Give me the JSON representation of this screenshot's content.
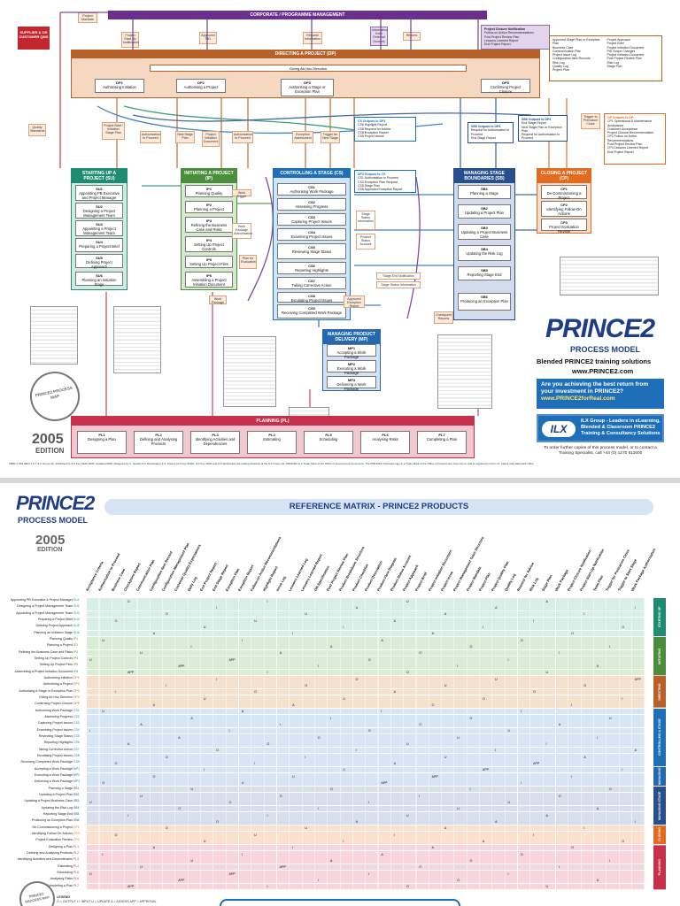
{
  "poster": {
    "corporate_bar": "CORPORATE / PROGRAMME MANAGEMENT",
    "supplier_box": "SUPPLIER & OR CUSTOMER QMS",
    "directing": {
      "title": "DIRECTING A PROJECT (DP)",
      "adhoc": "Giving Ad Hoc Direction",
      "subs": [
        {
          "code": "DP1",
          "label": "Authorising Initiation"
        },
        {
          "code": "DP2",
          "label": "Authorising a Project"
        },
        {
          "code": "DP3",
          "label": "Authorising a Stage or Exception Plan"
        },
        {
          "code": "DP5",
          "label": "Confirming Project Closure"
        }
      ]
    },
    "top_notes": [
      "Project Mandate",
      "Project Start-Up Notification",
      "Approved PID",
      "Request Information",
      "Information from External Sources",
      "Reports"
    ],
    "closure_notifications": {
      "title": "Project Closure Notification",
      "items": [
        "Follow-on Action Recommendations",
        "Post Project Review Plan",
        "Lessons Learned Report",
        "End Project Report"
      ]
    },
    "side_notes": [
      "Quality Standards",
      "Project Brief / Initiation Stage Plan",
      "Authorisation to Proceed",
      "Next Stage Plan",
      "Project Initiation Document",
      "Authorisation to Proceed",
      "Exception Assessment",
      "Trigger for New Stage",
      "Trigger to Premature Close"
    ],
    "ci_inputs": {
      "title": "CS Outputs to DP3",
      "items": [
        "CS6 Highlight Report",
        "CS8 Request for Advice",
        "CS8 Exception Report",
        "CS8 Project Issues"
      ]
    },
    "sb_dp_outputs": {
      "title": "SB5 Outputs to DP3",
      "items": [
        "Request for Authorisation to Proceed",
        "End Stage Report"
      ]
    },
    "sb_dp4": {
      "title": "SB6 Outputs to DP3",
      "items": [
        "End Stage Report",
        "Next Stage Plan or Exception Plan",
        "Request for Authorisation to Proceed"
      ]
    },
    "cp_outputs": {
      "title": "CP Outputs to DP",
      "items": [
        "CP1 Operational & Maintenance Acceptance",
        "Customer Acceptance",
        "Project Closure Recommendation",
        "CP2 Follow on Action Recommendations",
        "Post Project Review Plan",
        "CP3 Lessons Learned Report",
        "End Project Report"
      ]
    },
    "mgmt_info_top": {
      "items": [
        "Approved Stage Plan or Exception Plan",
        "Business Case",
        "Communication Plan",
        "Project Issue Log",
        "Configuration Item Records",
        "Risk Log",
        "Quality Log",
        "Project Plan",
        "Project Approach",
        "Project Brief",
        "Project Initiation Document",
        "PID Scope Changes",
        "Project Initiation Document",
        "Post Project Review Plan",
        "Risk Log",
        "Stage Plan"
      ]
    },
    "stacks": [
      {
        "title": "STARTING UP A PROJECT (SU)",
        "subs": [
          {
            "code": "SU1",
            "label": "Appointing PB Executive and Project Manager"
          },
          {
            "code": "SU2",
            "label": "Designing a Project Management Team"
          },
          {
            "code": "SU3",
            "label": "Appointing a Project Management Team"
          },
          {
            "code": "SU4",
            "label": "Preparing a Project Brief"
          },
          {
            "code": "SU5",
            "label": "Defining Project Approach"
          },
          {
            "code": "SU6",
            "label": "Planning an Initiation Stage"
          }
        ]
      },
      {
        "title": "INITIATING A PROJECT (IP)",
        "subs": [
          {
            "code": "IP1",
            "label": "Planning Quality"
          },
          {
            "code": "IP2",
            "label": "Planning a Project"
          },
          {
            "code": "IP3",
            "label": "Refining the Business Case and Risks"
          },
          {
            "code": "IP4",
            "label": "Setting Up Project Controls"
          },
          {
            "code": "IP5",
            "label": "Setting Up Project Files"
          },
          {
            "code": "IP6",
            "label": "Assembling a Project Initiation Document"
          }
        ]
      },
      {
        "title": "CONTROLLING A STAGE (CS)",
        "subs": [
          {
            "code": "CS1",
            "label": "Authorising Work Package"
          },
          {
            "code": "CS2",
            "label": "Assessing Progress"
          },
          {
            "code": "CS3",
            "label": "Capturing Project Issues"
          },
          {
            "code": "CS4",
            "label": "Examining Project Issues"
          },
          {
            "code": "CS5",
            "label": "Reviewing Stage Status"
          },
          {
            "code": "CS6",
            "label": "Reporting Highlights"
          },
          {
            "code": "CS7",
            "label": "Taking Corrective Action"
          },
          {
            "code": "CS8",
            "label": "Escalating Project Issues"
          },
          {
            "code": "CS9",
            "label": "Receiving Completed Work Package"
          }
        ]
      },
      {
        "title": "MANAGING STAGE BOUNDARIES (SB)",
        "subs": [
          {
            "code": "SB1",
            "label": "Planning a Stage"
          },
          {
            "code": "SB2",
            "label": "Updating a Project Plan"
          },
          {
            "code": "SB3",
            "label": "Updating a Project Business Case"
          },
          {
            "code": "SB4",
            "label": "Updating the Risk Log"
          },
          {
            "code": "SB5",
            "label": "Reporting Stage End"
          },
          {
            "code": "SB6",
            "label": "Producing an Exception Plan"
          }
        ]
      },
      {
        "title": "CLOSING A PROJECT (CP)",
        "subs": [
          {
            "code": "CP1",
            "label": "De-Commissioning a Project"
          },
          {
            "code": "CP2",
            "label": "Identifying Follow-On Actions"
          },
          {
            "code": "CP3",
            "label": "Project Evaluation Review"
          }
        ]
      },
      {
        "title": "MANAGING PRODUCT DELIVERY (MP)",
        "subs": [
          {
            "code": "MP1",
            "label": "Accepting a Work Package"
          },
          {
            "code": "MP2",
            "label": "Executing a Work Package"
          },
          {
            "code": "MP3",
            "label": "Delivering a Work Package"
          }
        ]
      }
    ],
    "cs_outputs": {
      "title": "DP3 Outputs to CS",
      "items": [
        "CS1 Authorisation to Proceed",
        "CS2 Exception Plan Request",
        "CS5 Stage Plan",
        "CS8 Approved Exception Report"
      ]
    },
    "cs_side": [
      "Work Trigger",
      "Stage Status Information",
      "Product Status Account",
      "Stage End Notification",
      "Work Package Authorisation",
      "Stage Status Information",
      "Plan for Evaluation",
      "Work Package",
      "Approved Exception Report",
      "Checkpoint Reports"
    ],
    "planning": {
      "title": "PLANNING (PL)",
      "subs": [
        {
          "code": "PL1",
          "label": "Designing a Plan"
        },
        {
          "code": "PL2",
          "label": "Defining and Analysing Products"
        },
        {
          "code": "PL3",
          "label": "Identifying Activities and Dependencies"
        },
        {
          "code": "PL4",
          "label": "Estimating"
        },
        {
          "code": "PL5",
          "label": "Scheduling"
        },
        {
          "code": "PL6",
          "label": "Analysing Risks"
        },
        {
          "code": "PL7",
          "label": "Completing a Plan"
        }
      ]
    },
    "prince2_logo": "PRINCE2",
    "process_model": "PROCESS MODEL",
    "blended": "Blended PRINCE2 training solutions",
    "url": "www.PRINCE2.com",
    "question": "Are you achieving the best return from your investment in PRINCE2?",
    "question_url": "www.PRINCE2forReal.com",
    "ilx_text": "ILX Group - Leaders in eLearning, Blended & Classroom PRINCE2 Training & Consultancy Solutions",
    "ilx": "ILX",
    "order_text": "To order further copies of this process model, or to contact a Training Specialist, call +44 (0) 1270 611600",
    "edition_year": "2005",
    "edition": "EDITION",
    "stamp": "PRINCE2 PROCESS MAP",
    "footer": "ISBN: 0 954 9904 1 6   © ILX Group plc. Published by ILX Key Skills 2005. Updated 2005. Designed by C. Gaudin ILX Workscape) & S. Davies (ILX Key Skills). ILX Key Skills and ILX Workscape are trading divisions of the ILX Group plc.   PRINCE2 is a Trade Mark of the Office of Government Commerce. The PRINCE2 Cityscape logo is a Trade Mark of the Office of Government Commerce, and is registered in the U.S. patent and trademark office.",
    "colors": {
      "corporate": "#6a2f8a",
      "directing": "#b6602a",
      "su": "#1f8c72",
      "ip": "#4a8d3b",
      "cs": "#1f6fb8",
      "sb": "#274f8e",
      "cp": "#e36a1f",
      "mp": "#2468b0",
      "planning": "#c7304a",
      "supplier": "#c1272d"
    }
  },
  "matrix": {
    "logo": "PRINCE2",
    "process_model": "PROCESS MODEL",
    "year": "2005",
    "edition": "EDITION",
    "title": "REFERENCE MATRIX - PRINCE2 PRODUCTS",
    "legend_title": "LEGEND",
    "legend": "O = OUTPUT   I = INPUT   U = UPDATE   A = ASSESS   APP = APPROVAL",
    "stamp": "PRINCE2 PROCESS MAP",
    "rows": [
      {
        "label": "Appointing PB Executive & Project Manager",
        "code": "SU1",
        "band": "su"
      },
      {
        "label": "Designing a Project Management Team",
        "code": "SU2",
        "band": "su"
      },
      {
        "label": "Appointing a Project Management Team",
        "code": "SU3",
        "band": "su"
      },
      {
        "label": "Preparing a Project Brief",
        "code": "SU4",
        "band": "su"
      },
      {
        "label": "Defining Project Approach",
        "code": "SU5",
        "band": "su"
      },
      {
        "label": "Planning an Initiation Stage",
        "code": "SU6",
        "band": "su"
      },
      {
        "label": "Planning Quality",
        "code": "IP1",
        "band": "ip"
      },
      {
        "label": "Planning a Project",
        "code": "IP2",
        "band": "ip"
      },
      {
        "label": "Refining the Business Case and Risks",
        "code": "IP3",
        "band": "ip"
      },
      {
        "label": "Setting Up Project Controls",
        "code": "IP4",
        "band": "ip"
      },
      {
        "label": "Setting Up Project Files",
        "code": "IP5",
        "band": "ip"
      },
      {
        "label": "Assembling a Project Initiation Document",
        "code": "IP6",
        "band": "ip"
      },
      {
        "label": "Authorising Initiation",
        "code": "DP1",
        "band": "dp"
      },
      {
        "label": "Authorising a Project",
        "code": "DP2",
        "band": "dp"
      },
      {
        "label": "Authorising a Stage or Exception Plan",
        "code": "DP3",
        "band": "dp"
      },
      {
        "label": "Giving Ad Hoc Direction",
        "code": "DP4",
        "band": "dp"
      },
      {
        "label": "Confirming Project Closure",
        "code": "DP5",
        "band": "dp"
      },
      {
        "label": "Authorising Work Package",
        "code": "CS1",
        "band": "cs"
      },
      {
        "label": "Assessing Progress",
        "code": "CS2",
        "band": "cs"
      },
      {
        "label": "Capturing Project Issues",
        "code": "CS3",
        "band": "cs"
      },
      {
        "label": "Examining Project Issues",
        "code": "CS4",
        "band": "cs"
      },
      {
        "label": "Reviewing Stage Status",
        "code": "CS5",
        "band": "cs"
      },
      {
        "label": "Reporting Highlights",
        "code": "CS6",
        "band": "cs"
      },
      {
        "label": "Taking Corrective Action",
        "code": "CS7",
        "band": "cs"
      },
      {
        "label": "Escalating Project Issues",
        "code": "CS8",
        "band": "cs"
      },
      {
        "label": "Receiving Completed Work Package",
        "code": "CS9",
        "band": "cs"
      },
      {
        "label": "Accepting a Work Package",
        "code": "MP1",
        "band": "mp"
      },
      {
        "label": "Executing a Work Package",
        "code": "MP2",
        "band": "mp"
      },
      {
        "label": "Delivering a Work Package",
        "code": "MP3",
        "band": "mp"
      },
      {
        "label": "Planning a Stage",
        "code": "SB1",
        "band": "sb"
      },
      {
        "label": "Updating a Project Plan",
        "code": "SB2",
        "band": "sb"
      },
      {
        "label": "Updating a Project Business Case",
        "code": "SB3",
        "band": "sb"
      },
      {
        "label": "Updating the Risk Log",
        "code": "SB4",
        "band": "sb"
      },
      {
        "label": "Reporting Stage End",
        "code": "SB5",
        "band": "sb"
      },
      {
        "label": "Producing an Exception Plan",
        "code": "SB6",
        "band": "sb"
      },
      {
        "label": "De-Commissioning a Project",
        "code": "CP1",
        "band": "cp"
      },
      {
        "label": "Identifying Follow-On Actions",
        "code": "CP2",
        "band": "cp"
      },
      {
        "label": "Project Evaluation Review",
        "code": "CP3",
        "band": "cp"
      },
      {
        "label": "Designing a Plan",
        "code": "PL1",
        "band": "pl"
      },
      {
        "label": "Defining and Analysing Products",
        "code": "PL2",
        "band": "pl"
      },
      {
        "label": "Identifying Activities and Dependencies",
        "code": "PL3",
        "band": "pl"
      },
      {
        "label": "Estimating",
        "code": "PL4",
        "band": "pl"
      },
      {
        "label": "Scheduling",
        "code": "PL5",
        "band": "pl"
      },
      {
        "label": "Analysing Risks",
        "code": "PL6",
        "band": "pl"
      },
      {
        "label": "Completing a Plan",
        "code": "PL7",
        "band": "pl"
      }
    ],
    "columns": [
      "Acceptance Criteria",
      "Authorisation to Proceed",
      "Business Case",
      "Checkpoint Report",
      "Communication Plan",
      "Configuration Item Record",
      "Configuration Management Plan",
      "Customer Quality Expectations",
      "Daily Log",
      "End Project Report",
      "End Stage Report",
      "Exception Plan",
      "Exception Report",
      "Follow-on Action Recommendations",
      "Highlight Report",
      "Issue Log",
      "Lessons Learned Log",
      "Lessons Learned Report",
      "Off-Specification",
      "Post Project Review Plan",
      "Product Breakdown Structure",
      "Product Checklist",
      "Product Description",
      "Product Flow Diagram",
      "Product Status Account",
      "Project Approach",
      "Project Brief",
      "Project Initiation Document",
      "Project Issue",
      "Project Management Team Structure",
      "Project Mandate",
      "Project Plan",
      "Project Quality Plan",
      "Quality Log",
      "Request for Advice",
      "Risk Log",
      "Stage Plan",
      "Work Package",
      "Project Closure Notification",
      "Project Start-Up Notification",
      "Team Plan",
      "Trigger for Premature Close",
      "Trigger to Start Stage",
      "Work Package Authorisation"
    ],
    "marks": [
      "O",
      "I",
      "U",
      "A",
      "I",
      "O",
      "U",
      "I",
      "A",
      "O",
      "I",
      "U",
      "APP",
      "I",
      "O",
      "U"
    ],
    "side_bands": [
      {
        "label": "STARTING UP",
        "band": "su"
      },
      {
        "label": "INITIATING",
        "band": "ip"
      },
      {
        "label": "DIRECTING",
        "band": "dp"
      },
      {
        "label": "CONTROLLING A STAGE",
        "band": "cs"
      },
      {
        "label": "MANAGING PRODUCT DELIVERY",
        "band": "mp"
      },
      {
        "label": "MANAGING STAGE BOUNDARIES",
        "band": "sb"
      },
      {
        "label": "CLOSING",
        "band": "cp"
      },
      {
        "label": "PLANNING",
        "band": "pl"
      }
    ],
    "band_colors": {
      "su": "#1f8c72",
      "ip": "#4a8d3b",
      "dp": "#b6602a",
      "cs": "#1f6fb8",
      "mp": "#2468b0",
      "sb": "#274f8e",
      "cp": "#e36a1f",
      "pl": "#c7304a"
    },
    "band_tints": {
      "su": "#d8efe8",
      "ip": "#dbecd4",
      "dp": "#f5dfcd",
      "cs": "#d6e6f6",
      "mp": "#d8e4f3",
      "sb": "#d7dfed",
      "cp": "#fbe0cd",
      "pl": "#f6d5dc"
    }
  }
}
